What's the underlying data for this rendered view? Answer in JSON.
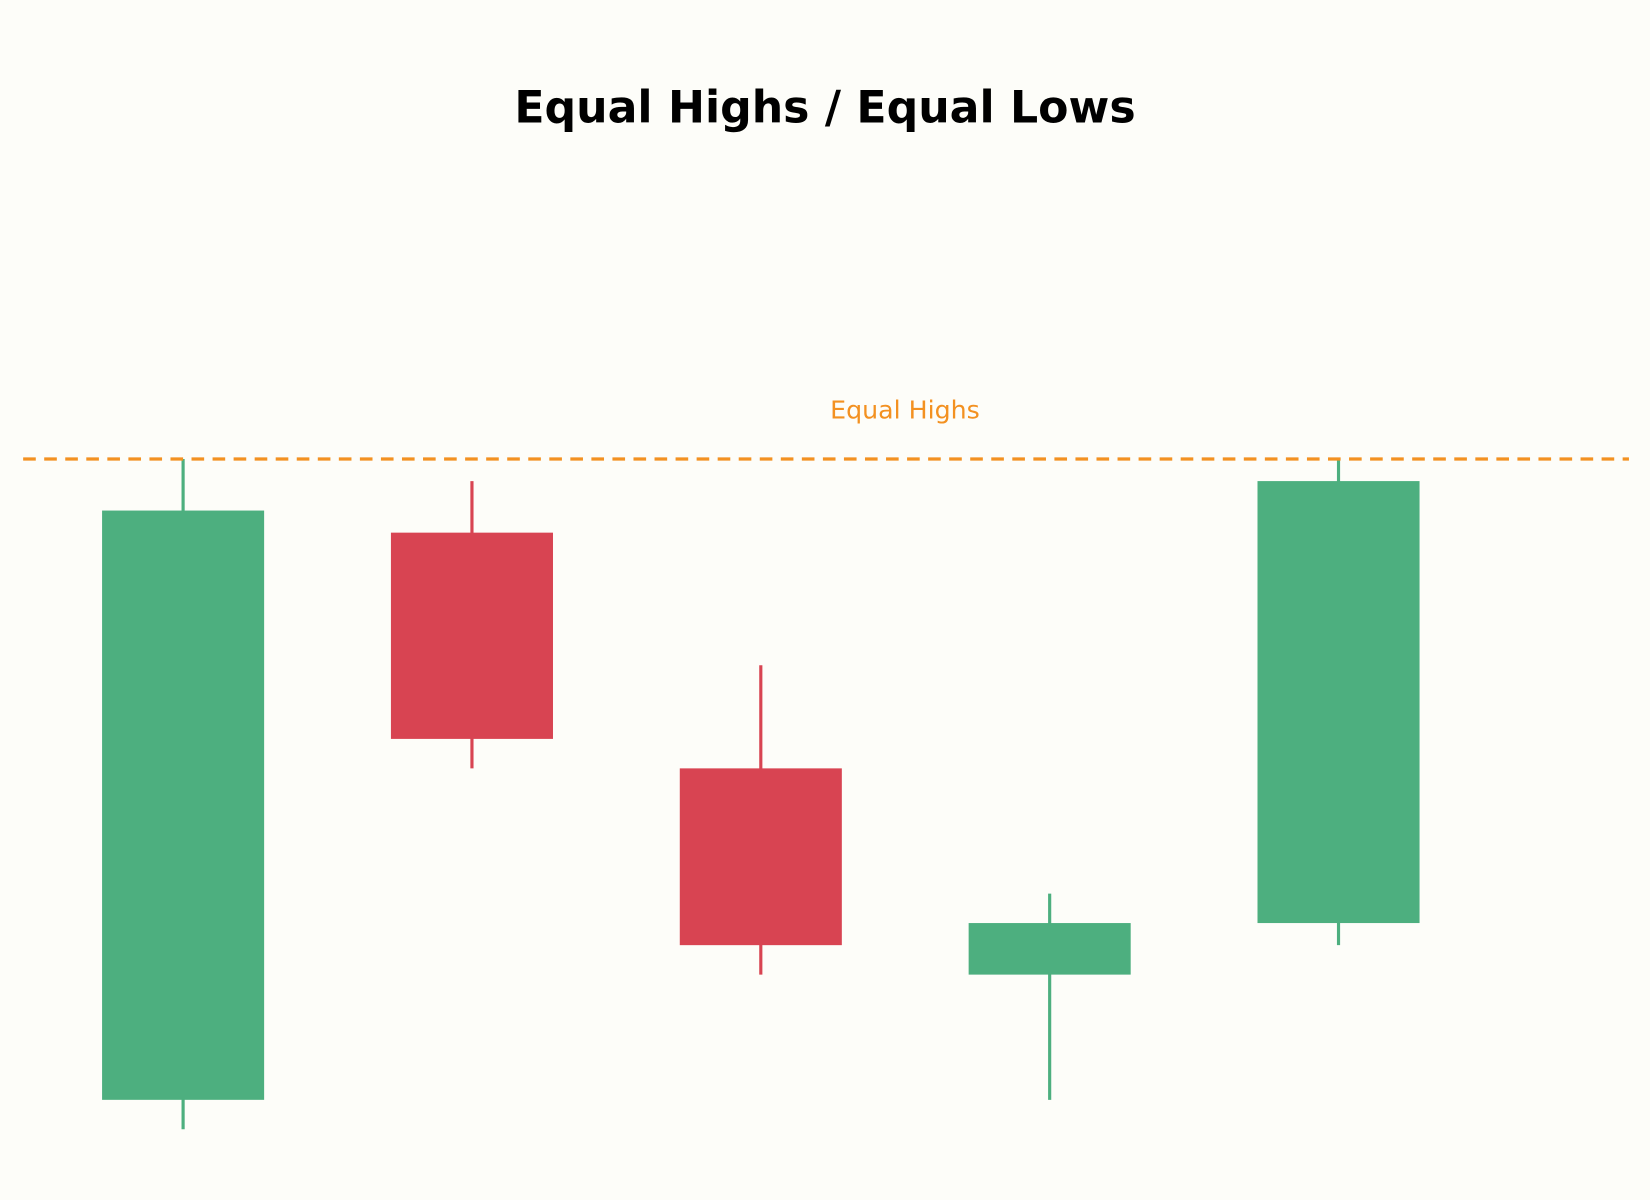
{
  "chart_data": {
    "type": "candlestick",
    "title": "Equal Highs / Equal Lows",
    "open": [
      13,
      90,
      58,
      30,
      37
    ],
    "high": [
      100,
      97,
      72,
      41,
      100
    ],
    "low": [
      9,
      58,
      30,
      13,
      34
    ],
    "close": [
      93,
      62,
      34,
      37,
      97
    ],
    "up_color": "#4daf7f",
    "down_color": "#d84452",
    "ylim": [
      0,
      160
    ],
    "levels": [
      {
        "label": "Equal Highs",
        "value": 100,
        "color": "#f39121"
      }
    ]
  }
}
